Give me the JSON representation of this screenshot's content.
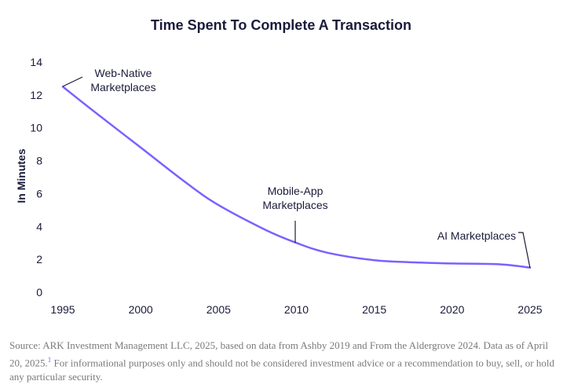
{
  "chart_data": {
    "type": "line",
    "title": "Time Spent To Complete A Transaction",
    "xlabel": "",
    "ylabel": "In Minutes",
    "xlim": [
      1995,
      2025
    ],
    "ylim": [
      0,
      14
    ],
    "xticks": [
      1995,
      2000,
      2005,
      2010,
      2015,
      2020,
      2025
    ],
    "yticks": [
      0,
      2,
      4,
      6,
      8,
      10,
      12,
      14
    ],
    "grid": false,
    "series": [
      {
        "name": "Time Spent To Complete A Transaction",
        "color": "#7b61ff",
        "x": [
          1995,
          1997,
          2000,
          2003,
          2005,
          2008,
          2010,
          2012,
          2015,
          2018,
          2020,
          2023,
          2025
        ],
        "y": [
          12.5,
          11.0,
          8.8,
          6.6,
          5.3,
          3.8,
          3.0,
          2.4,
          1.95,
          1.8,
          1.75,
          1.7,
          1.5
        ]
      }
    ],
    "annotations": [
      {
        "name": "web-native",
        "lines": [
          "Web-Native",
          "Marketplaces"
        ],
        "x": 1995,
        "y": 12.5
      },
      {
        "name": "mobile-app",
        "lines": [
          "Mobile-App",
          "Marketplaces"
        ],
        "x": 2010,
        "y": 3.0
      },
      {
        "name": "ai",
        "lines": [
          "AI Marketplaces"
        ],
        "x": 2025,
        "y": 1.5
      }
    ]
  },
  "footer": {
    "source_text": "Source: ARK Investment Management LLC, 2025, based on data from Ashby 2019 and From the Aldergrove 2024. Data as of April 20, 2025.",
    "footnote_marker": "1",
    "disclaimer": " For informational purposes only and should not be considered investment advice or a recommendation to buy, sell, or hold any particular security."
  }
}
